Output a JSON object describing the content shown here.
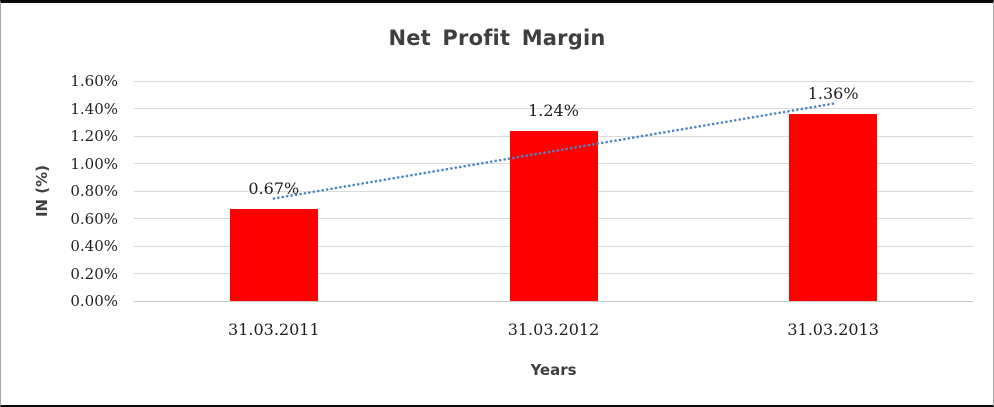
{
  "chart_data": {
    "type": "bar",
    "title": "Net Profit Margin",
    "xlabel": "Years",
    "ylabel": "IN (%)",
    "categories": [
      "31.03.2011",
      "31.03.2012",
      "31.03.2013"
    ],
    "values": [
      0.67,
      1.24,
      1.36
    ],
    "data_labels": [
      "0.67%",
      "1.24%",
      "1.36%"
    ],
    "ylim": [
      0,
      1.6
    ],
    "ytick_step": 0.2,
    "ytick_labels": [
      "0.00%",
      "0.20%",
      "0.40%",
      "0.60%",
      "0.80%",
      "1.00%",
      "1.20%",
      "1.40%",
      "1.60%"
    ],
    "grid": true,
    "legend": "none",
    "trendline": {
      "type": "linear",
      "style": "dotted",
      "start_value": 0.745,
      "end_value": 1.435
    },
    "colors": {
      "bar": "#FF0000",
      "trendline": "#4A86C8",
      "gridline": "#D9D9D9",
      "axis_line": "#C9C9C9",
      "title_text": "#3F3F3F",
      "tick_text": "#1F1F1F"
    }
  }
}
